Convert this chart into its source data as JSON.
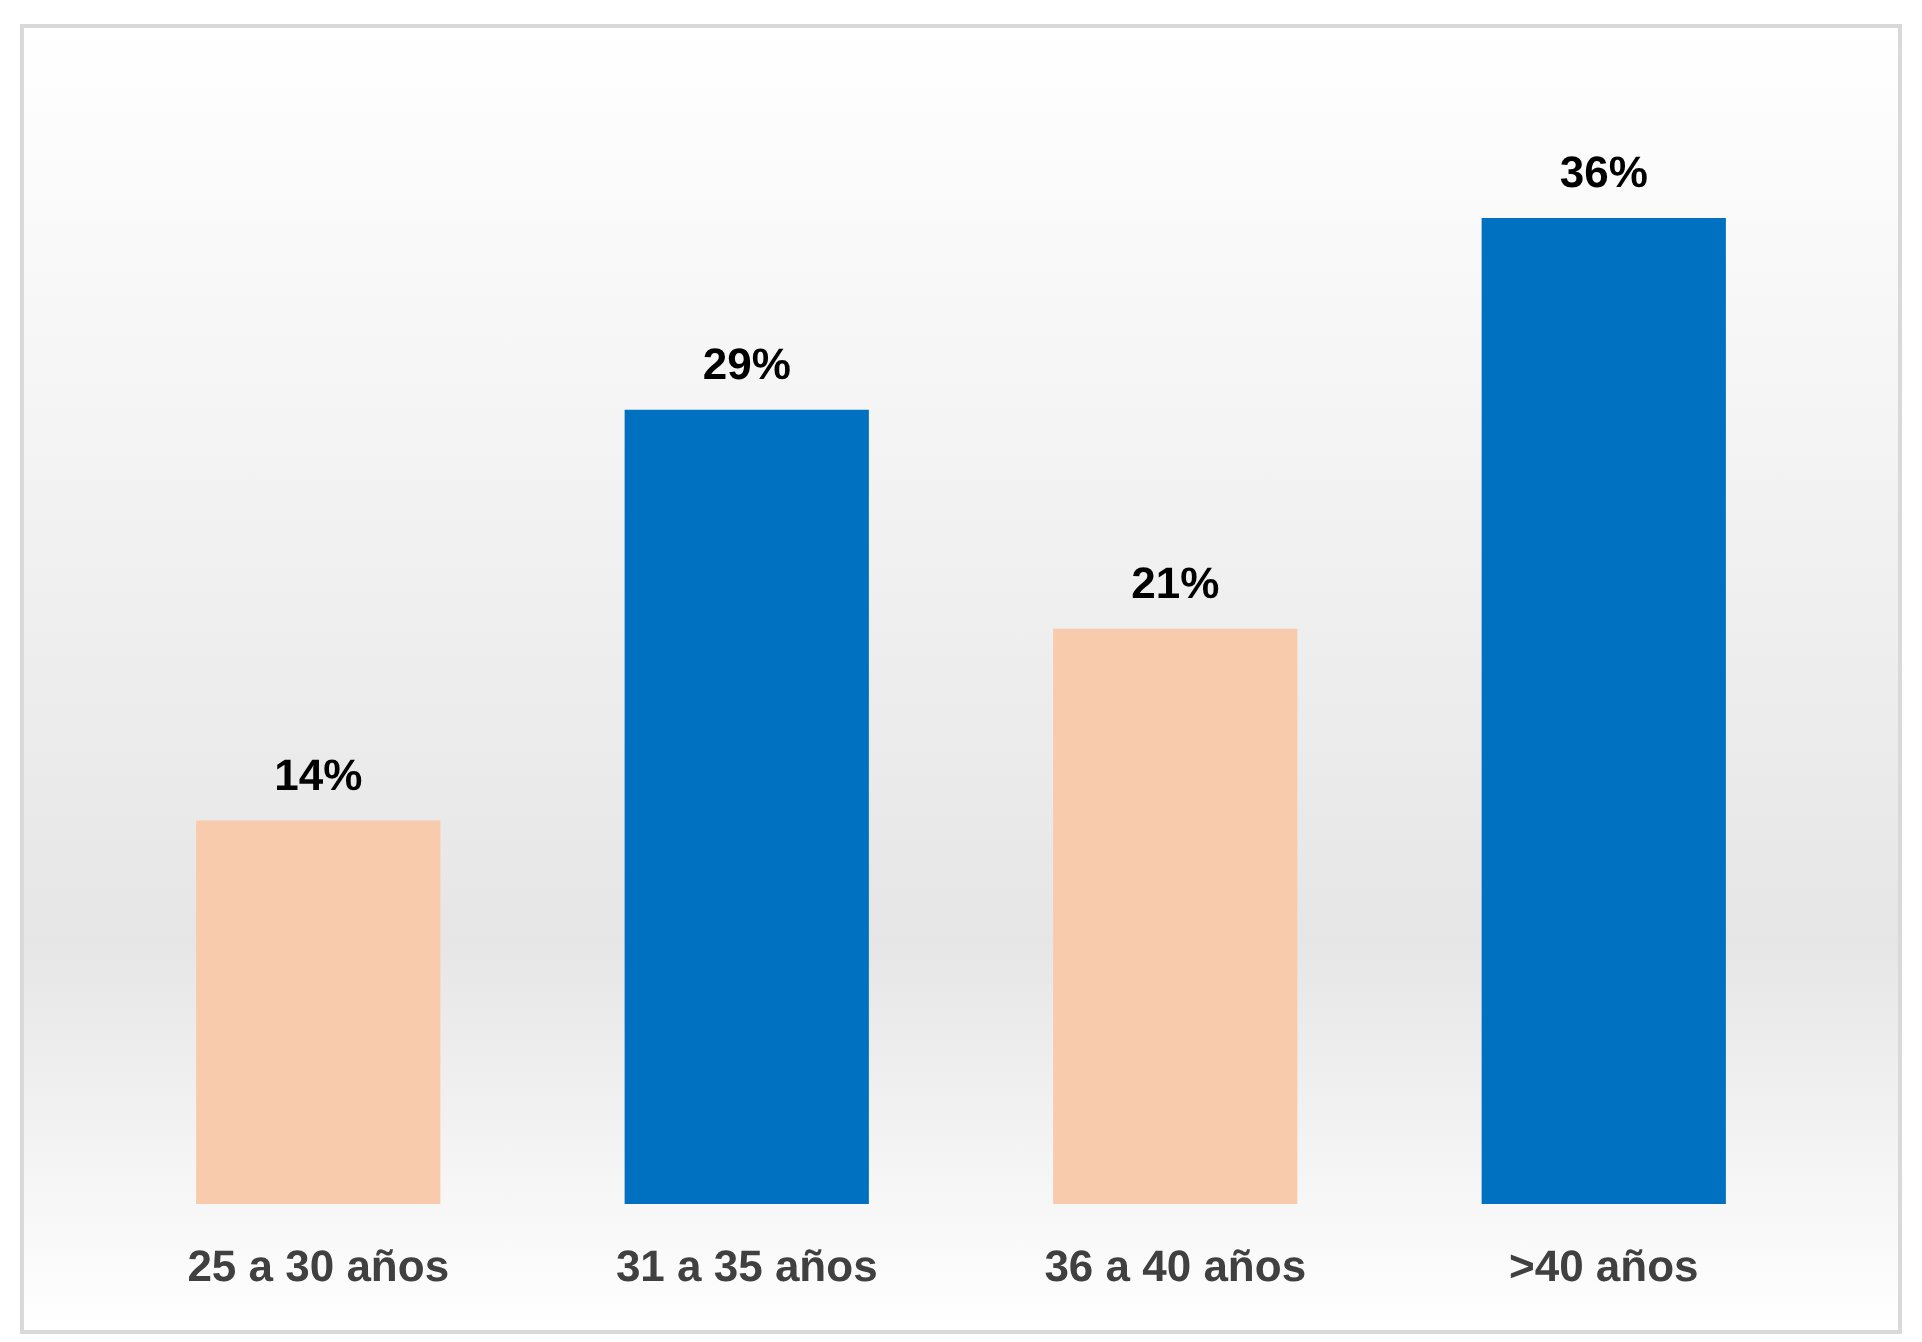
{
  "chart_data": {
    "type": "bar",
    "categories": [
      "25 a 30 años",
      "31 a 35 años",
      "36 a 40 años",
      ">40 años"
    ],
    "values": [
      14,
      29,
      21,
      36
    ],
    "colors": [
      "#f8cbad",
      "#0070c0",
      "#f8cbad",
      "#0070c0"
    ],
    "value_labels": [
      "14%",
      "29%",
      "21%",
      "36%"
    ]
  }
}
